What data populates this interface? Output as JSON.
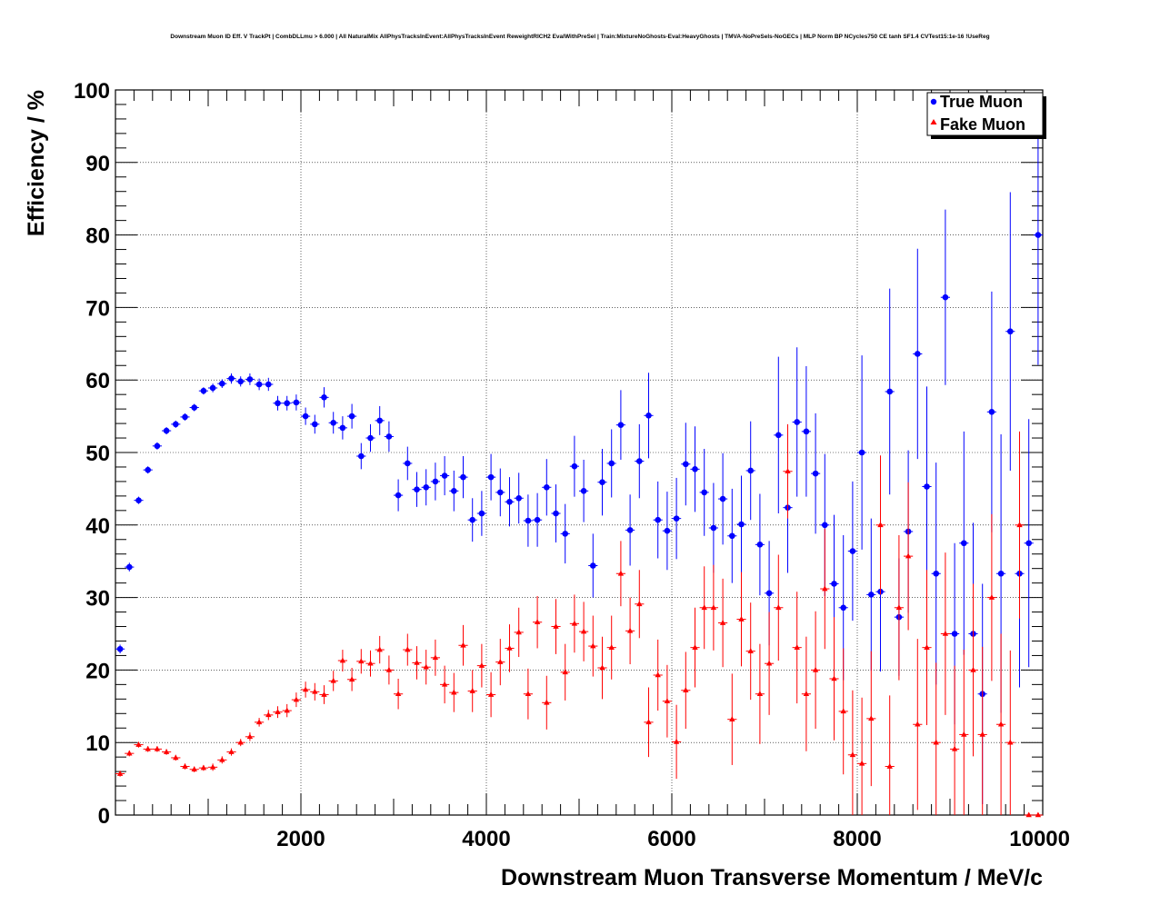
{
  "chart_data": {
    "type": "scatter",
    "title": "Downstream Muon ID Eff. V TrackPt | CombDLLmu > 6.000 | All NaturalMix AllPhysTracksInEvent:AllPhysTracksInEvent ReweightRICH2 EvalWithPreSel | Train:MixtureNoGhosts-Eval:HeavyGhosts | TMVA-NoPreSels-NoGECs | MLP Norm BP NCycles750 CE tanh SF1.4 CVTest15:1e-16 !UseReg",
    "xlabel": "Downstream Muon Transverse Momentum / MeV/c",
    "ylabel": "Efficiency / %",
    "xlim": [
      0,
      10000
    ],
    "ylim": [
      0,
      100
    ],
    "x_ticks": [
      "2000",
      "4000",
      "6000",
      "8000",
      "10000"
    ],
    "y_ticks": [
      "0",
      "10",
      "20",
      "30",
      "40",
      "50",
      "60",
      "70",
      "80",
      "90",
      "100"
    ],
    "grid": true,
    "legend_position": "top-right",
    "series": [
      {
        "name": "True Muon",
        "color": "#0000ff",
        "marker": "circle",
        "points": [
          [
            50,
            22.9,
            0.6
          ],
          [
            150,
            34.2,
            0.6
          ],
          [
            250,
            43.4,
            0.5
          ],
          [
            350,
            47.6,
            0.5
          ],
          [
            450,
            50.9,
            0.5
          ],
          [
            550,
            53.0,
            0.5
          ],
          [
            650,
            53.9,
            0.5
          ],
          [
            750,
            54.9,
            0.5
          ],
          [
            850,
            56.2,
            0.5
          ],
          [
            950,
            58.5,
            0.5
          ],
          [
            1050,
            58.9,
            0.6
          ],
          [
            1150,
            59.5,
            0.6
          ],
          [
            1250,
            60.2,
            0.7
          ],
          [
            1350,
            59.8,
            0.7
          ],
          [
            1450,
            60.1,
            0.8
          ],
          [
            1550,
            59.4,
            0.8
          ],
          [
            1650,
            59.4,
            0.9
          ],
          [
            1750,
            56.8,
            1.0
          ],
          [
            1850,
            56.8,
            1.0
          ],
          [
            1950,
            56.9,
            1.1
          ],
          [
            2050,
            55.0,
            1.2
          ],
          [
            2150,
            53.9,
            1.3
          ],
          [
            2250,
            57.6,
            1.4
          ],
          [
            2350,
            54.1,
            1.5
          ],
          [
            2450,
            53.4,
            1.6
          ],
          [
            2550,
            55.0,
            1.7
          ],
          [
            2650,
            49.5,
            1.8
          ],
          [
            2750,
            52.0,
            1.9
          ],
          [
            2850,
            54.4,
            2.0
          ],
          [
            2950,
            52.2,
            2.1
          ],
          [
            3050,
            44.1,
            2.2
          ],
          [
            3150,
            48.5,
            2.3
          ],
          [
            3250,
            44.9,
            2.4
          ],
          [
            3350,
            45.2,
            2.5
          ],
          [
            3450,
            46.0,
            2.6
          ],
          [
            3550,
            46.8,
            2.7
          ],
          [
            3650,
            44.7,
            2.8
          ],
          [
            3750,
            46.6,
            2.9
          ],
          [
            3850,
            40.7,
            3.0
          ],
          [
            3950,
            41.6,
            3.1
          ],
          [
            4050,
            46.6,
            3.2
          ],
          [
            4150,
            44.5,
            3.3
          ],
          [
            4250,
            43.2,
            3.4
          ],
          [
            4350,
            43.7,
            3.5
          ],
          [
            4450,
            40.6,
            3.6
          ],
          [
            4550,
            40.7,
            3.7
          ],
          [
            4650,
            45.2,
            3.9
          ],
          [
            4750,
            41.6,
            4.0
          ],
          [
            4850,
            38.8,
            4.1
          ],
          [
            4950,
            48.1,
            4.2
          ],
          [
            5050,
            44.7,
            4.3
          ],
          [
            5150,
            34.4,
            4.4
          ],
          [
            5250,
            45.9,
            4.6
          ],
          [
            5350,
            48.5,
            4.7
          ],
          [
            5450,
            53.8,
            4.8
          ],
          [
            5550,
            39.3,
            4.9
          ],
          [
            5650,
            48.8,
            5.1
          ],
          [
            5750,
            55.1,
            5.9
          ],
          [
            5850,
            40.7,
            5.3
          ],
          [
            5950,
            39.2,
            5.4
          ],
          [
            6050,
            40.9,
            5.6
          ],
          [
            6150,
            48.4,
            5.7
          ],
          [
            6250,
            47.7,
            5.9
          ],
          [
            6350,
            44.5,
            6.0
          ],
          [
            6450,
            39.6,
            6.2
          ],
          [
            6550,
            43.6,
            6.3
          ],
          [
            6650,
            38.5,
            6.5
          ],
          [
            6750,
            40.1,
            6.7
          ],
          [
            6850,
            47.5,
            6.8
          ],
          [
            6950,
            37.3,
            7.0
          ],
          [
            7050,
            30.6,
            7.2
          ],
          [
            7150,
            52.4,
            10.8
          ],
          [
            7250,
            42.4,
            9.0
          ],
          [
            7350,
            54.2,
            10.3
          ],
          [
            7450,
            52.9,
            9.0
          ],
          [
            7550,
            47.1,
            8.3
          ],
          [
            7650,
            40.0,
            9.8
          ],
          [
            7750,
            31.9,
            9.5
          ],
          [
            7850,
            28.6,
            10.0
          ],
          [
            7950,
            36.4,
            9.6
          ],
          [
            8050,
            50.0,
            13.4
          ],
          [
            8150,
            30.4,
            10.5
          ],
          [
            8250,
            30.8,
            11.0
          ],
          [
            8350,
            58.4,
            14.2
          ],
          [
            8450,
            27.3,
            8.1
          ],
          [
            8550,
            39.1,
            11.2
          ],
          [
            8650,
            63.6,
            14.5
          ],
          [
            8750,
            45.3,
            13.8
          ],
          [
            8850,
            33.3,
            15.3
          ],
          [
            8950,
            71.4,
            12.1
          ],
          [
            9050,
            25.0,
            12.5
          ],
          [
            9150,
            37.5,
            15.4
          ],
          [
            9250,
            25.0,
            15.3
          ],
          [
            9350,
            16.7,
            15.2
          ],
          [
            9450,
            55.6,
            16.6
          ],
          [
            9550,
            33.3,
            19.2
          ],
          [
            9650,
            66.7,
            19.2
          ],
          [
            9750,
            33.3,
            15.7
          ],
          [
            9850,
            37.5,
            17.1
          ],
          [
            9950,
            80.0,
            17.9
          ]
        ]
      },
      {
        "name": "Fake Muon",
        "color": "#ff0000",
        "marker": "triangle",
        "points": [
          [
            50,
            5.7,
            0.4
          ],
          [
            150,
            8.5,
            0.4
          ],
          [
            250,
            9.7,
            0.4
          ],
          [
            350,
            9.1,
            0.4
          ],
          [
            450,
            9.1,
            0.4
          ],
          [
            550,
            8.7,
            0.4
          ],
          [
            650,
            7.9,
            0.4
          ],
          [
            750,
            6.7,
            0.4
          ],
          [
            850,
            6.3,
            0.4
          ],
          [
            950,
            6.5,
            0.4
          ],
          [
            1050,
            6.6,
            0.5
          ],
          [
            1150,
            7.6,
            0.5
          ],
          [
            1250,
            8.7,
            0.5
          ],
          [
            1350,
            10.0,
            0.5
          ],
          [
            1450,
            10.8,
            0.6
          ],
          [
            1550,
            12.8,
            0.6
          ],
          [
            1650,
            13.8,
            0.7
          ],
          [
            1750,
            14.2,
            0.8
          ],
          [
            1850,
            14.4,
            0.9
          ],
          [
            1950,
            15.9,
            1.0
          ],
          [
            2050,
            17.3,
            1.1
          ],
          [
            2150,
            17.0,
            1.2
          ],
          [
            2250,
            16.6,
            1.3
          ],
          [
            2350,
            18.5,
            1.4
          ],
          [
            2450,
            21.3,
            1.5
          ],
          [
            2550,
            18.7,
            1.6
          ],
          [
            2650,
            21.2,
            1.7
          ],
          [
            2750,
            20.9,
            1.8
          ],
          [
            2850,
            22.8,
            1.9
          ],
          [
            2950,
            20.0,
            2.0
          ],
          [
            3050,
            16.7,
            2.1
          ],
          [
            3150,
            22.8,
            2.2
          ],
          [
            3250,
            21.0,
            2.3
          ],
          [
            3350,
            20.4,
            2.4
          ],
          [
            3450,
            21.7,
            2.5
          ],
          [
            3550,
            18.0,
            2.6
          ],
          [
            3650,
            16.9,
            2.7
          ],
          [
            3750,
            23.4,
            2.8
          ],
          [
            3850,
            17.1,
            2.9
          ],
          [
            3950,
            20.6,
            3.0
          ],
          [
            4050,
            16.6,
            3.1
          ],
          [
            4150,
            21.1,
            3.2
          ],
          [
            4250,
            23.0,
            3.3
          ],
          [
            4350,
            25.2,
            3.4
          ],
          [
            4450,
            16.7,
            3.5
          ],
          [
            4550,
            26.6,
            3.6
          ],
          [
            4650,
            15.5,
            3.7
          ],
          [
            4750,
            26.0,
            3.8
          ],
          [
            4850,
            19.7,
            3.9
          ],
          [
            4950,
            26.4,
            4.0
          ],
          [
            5050,
            25.3,
            4.1
          ],
          [
            5150,
            23.3,
            4.2
          ],
          [
            5250,
            20.3,
            4.3
          ],
          [
            5350,
            23.1,
            4.4
          ],
          [
            5450,
            33.3,
            4.5
          ],
          [
            5550,
            25.4,
            4.6
          ],
          [
            5650,
            29.1,
            4.7
          ],
          [
            5750,
            12.8,
            4.8
          ],
          [
            5850,
            19.3,
            4.9
          ],
          [
            5950,
            15.7,
            5.0
          ],
          [
            6050,
            10.1,
            5.1
          ],
          [
            6150,
            17.2,
            5.3
          ],
          [
            6250,
            23.1,
            5.5
          ],
          [
            6350,
            28.6,
            5.7
          ],
          [
            6450,
            28.6,
            5.9
          ],
          [
            6550,
            26.5,
            6.1
          ],
          [
            6650,
            13.2,
            6.3
          ],
          [
            6750,
            27.0,
            6.5
          ],
          [
            6850,
            22.6,
            6.7
          ],
          [
            6950,
            16.7,
            6.9
          ],
          [
            7050,
            20.9,
            7.1
          ],
          [
            7150,
            28.6,
            7.3
          ],
          [
            7250,
            47.4,
            6.5
          ],
          [
            7350,
            23.1,
            7.7
          ],
          [
            7450,
            16.7,
            7.9
          ],
          [
            7550,
            20.0,
            8.1
          ],
          [
            7650,
            31.2,
            8.3
          ],
          [
            7750,
            18.8,
            8.5
          ],
          [
            7850,
            14.3,
            8.7
          ],
          [
            7950,
            8.3,
            8.9
          ],
          [
            8050,
            7.1,
            9.1
          ],
          [
            8150,
            13.3,
            9.3
          ],
          [
            8250,
            40.0,
            9.6
          ],
          [
            8350,
            6.7,
            9.8
          ],
          [
            8450,
            28.6,
            10.0
          ],
          [
            8550,
            35.7,
            10.2
          ],
          [
            8650,
            12.5,
            11.8
          ],
          [
            8750,
            23.1,
            10.7
          ],
          [
            8850,
            10.0,
            11.0
          ],
          [
            8950,
            25.0,
            11.2
          ],
          [
            9050,
            9.1,
            11.5
          ],
          [
            9150,
            11.1,
            11.7
          ],
          [
            9250,
            20.0,
            11.9
          ],
          [
            9350,
            11.1,
            12.1
          ],
          [
            9450,
            30.0,
            11.5
          ],
          [
            9550,
            12.5,
            12.5
          ],
          [
            9650,
            10.0,
            12.7
          ],
          [
            9750,
            40.0,
            12.9
          ],
          [
            9850,
            0,
            0
          ],
          [
            9950,
            0,
            0
          ]
        ]
      }
    ]
  }
}
